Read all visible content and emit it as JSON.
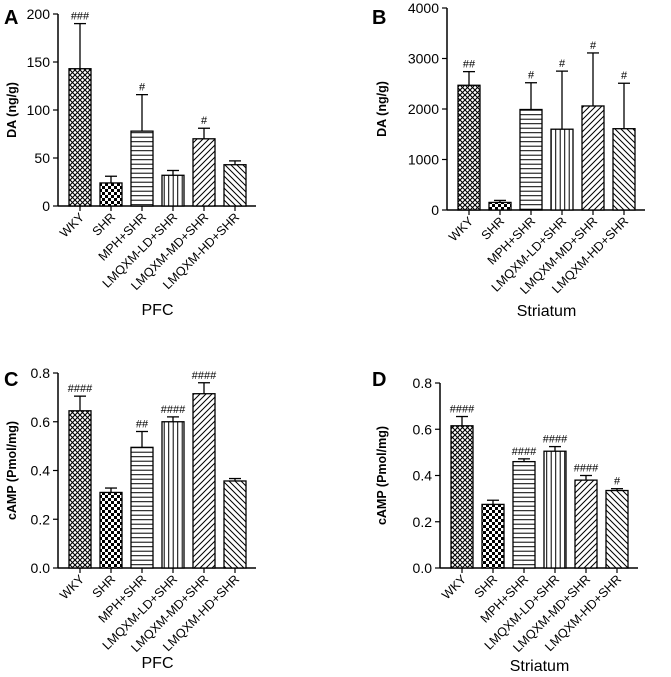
{
  "chart_data": [
    {
      "panel": "A",
      "type": "bar",
      "ylabel": "DA (ng/g)",
      "xlabel": "PFC",
      "ylim": [
        0,
        200
      ],
      "yticks": [
        "0",
        "50",
        "100",
        "150",
        "200"
      ],
      "categories": [
        "WKY",
        "SHR",
        "MPH+SHR",
        "LMQXM-LD+SHR",
        "LMQXM-MD+SHR",
        "LMQXM-HD+SHR"
      ],
      "values": [
        143,
        24,
        78,
        32,
        70,
        43
      ],
      "errors": [
        47,
        7,
        38,
        5,
        11,
        4
      ],
      "significance": [
        "###",
        "",
        "#",
        "",
        "#",
        ""
      ]
    },
    {
      "panel": "B",
      "type": "bar",
      "ylabel": "DA (ng/g)",
      "xlabel": "Striatum",
      "ylim": [
        0,
        4000
      ],
      "yticks": [
        "0",
        "1000",
        "2000",
        "3000",
        "4000"
      ],
      "categories": [
        "WKY",
        "SHR",
        "MPH+SHR",
        "LMQXM-LD+SHR",
        "LMQXM-MD+SHR",
        "LMQXM-HD+SHR"
      ],
      "values": [
        2470,
        150,
        1990,
        1600,
        2060,
        1610
      ],
      "errors": [
        270,
        40,
        530,
        1150,
        1050,
        900
      ],
      "significance": [
        "##",
        "",
        "#",
        "#",
        "#",
        "#"
      ]
    },
    {
      "panel": "C",
      "type": "bar",
      "ylabel": "cAMP (Pmol/mg)",
      "xlabel": "PFC",
      "ylim": [
        0,
        0.8
      ],
      "yticks": [
        "0.0",
        "0.2",
        "0.4",
        "0.6",
        "0.8"
      ],
      "categories": [
        "WKY",
        "SHR",
        "MPH+SHR",
        "LMQXM-LD+SHR",
        "LMQXM-MD+SHR",
        "LMQXM-HD+SHR"
      ],
      "values": [
        0.645,
        0.31,
        0.495,
        0.6,
        0.715,
        0.357
      ],
      "errors": [
        0.06,
        0.018,
        0.065,
        0.02,
        0.045,
        0.01
      ],
      "significance": [
        "####",
        "",
        "##",
        "####",
        "####",
        ""
      ]
    },
    {
      "panel": "D",
      "type": "bar",
      "ylabel": "cAMP (Pmol/mg)",
      "xlabel": "Striatum",
      "ylim": [
        0,
        0.8
      ],
      "yticks": [
        "0.0",
        "0.2",
        "0.4",
        "0.6",
        "0.8"
      ],
      "categories": [
        "WKY",
        "SHR",
        "MPH+SHR",
        "LMQXM-LD+SHR",
        "LMQXM-MD+SHR",
        "LMQXM-HD+SHR"
      ],
      "values": [
        0.615,
        0.275,
        0.46,
        0.505,
        0.38,
        0.335
      ],
      "errors": [
        0.04,
        0.018,
        0.012,
        0.02,
        0.02,
        0.008
      ],
      "significance": [
        "####",
        "",
        "####",
        "####",
        "####",
        "#"
      ]
    }
  ]
}
